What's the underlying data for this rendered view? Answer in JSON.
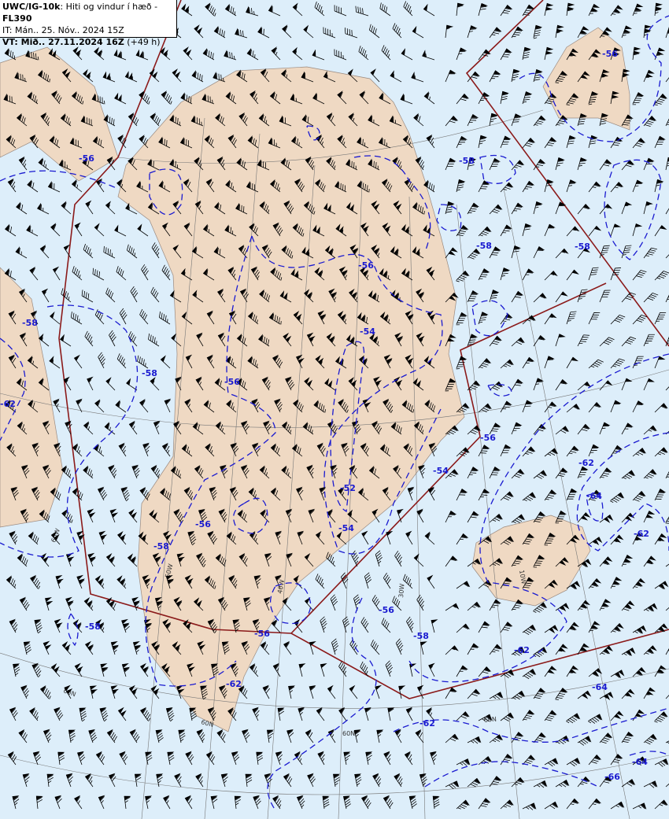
{
  "header": {
    "product": "UWC/IG-10k",
    "description": ": Hiti og vindur í hæð - ",
    "level": "FL390",
    "issue_time": "IT: Mán.. 25. Nóv.. 2024 15Z",
    "valid_label": "VT: Mið.. 27.11.2024 16Z",
    "valid_offset": " (+49 h)"
  },
  "colors": {
    "sea": "#ddeefa",
    "land": "#efd9c3",
    "coast": "#9a8a80",
    "fir_boundary": "#8b1a1a",
    "isotherm": "#1a1ad0",
    "graticule": "#777777",
    "barb": "#000000"
  },
  "isotherm_labels": [
    "-56",
    "-56",
    "-56",
    "-58",
    "-58",
    "-58",
    "-56",
    "-58",
    "-62",
    "-54",
    "-56",
    "-56",
    "-58",
    "-54",
    "-52",
    "-62",
    "-64",
    "-62",
    "-56",
    "-54",
    "-58",
    "-56",
    "-58",
    "-62",
    "-62",
    "-64",
    "-62",
    "-64",
    "-66",
    "-58"
  ],
  "graticule_labels": [
    "60W",
    "50W",
    "40W",
    "30W",
    "10W",
    "60N",
    "60N",
    "60N",
    "60N"
  ],
  "wind_barbs": "wind barbs in knots, westerly/northwesterly flow",
  "map_layers": [
    "land",
    "sea",
    "fir-boundaries",
    "graticule",
    "isotherms",
    "wind-barbs"
  ]
}
